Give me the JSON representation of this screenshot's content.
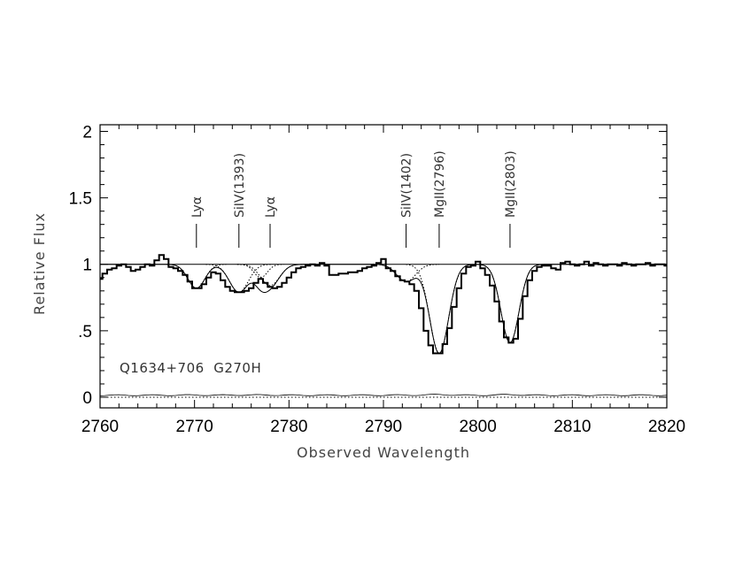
{
  "chart_data": {
    "type": "line",
    "xlabel": "Observed Wavelength",
    "ylabel": "Relative Flux",
    "xlim": [
      2760,
      2820
    ],
    "ylim": [
      -0.08,
      2.05
    ],
    "x_ticks": [
      2760,
      2770,
      2780,
      2790,
      2800,
      2810,
      2820
    ],
    "x_tick_labels": [
      "2760",
      "2770",
      "2780",
      "2790",
      "2800",
      "2810",
      "2820"
    ],
    "y_ticks": [
      0,
      0.5,
      1,
      1.5,
      2
    ],
    "y_tick_labels": [
      "0",
      ".5",
      "1",
      "1.5",
      "2"
    ],
    "annotation": "Q1634+706  G270H",
    "line_ids": [
      {
        "label": "Lyα",
        "x": 2770.2
      },
      {
        "label": "SiIV(1393)",
        "x": 2774.7
      },
      {
        "label": "Lyα",
        "x": 2778.0
      },
      {
        "label": "SiIV(1402)",
        "x": 2792.4
      },
      {
        "label": "MgII(2796)",
        "x": 2795.9
      },
      {
        "label": "MgII(2803)",
        "x": 2803.4
      }
    ],
    "continuum": 1.0,
    "zero_level": 0.0,
    "components": [
      {
        "center": 2770.2,
        "depth": 0.18,
        "sigma": 0.9
      },
      {
        "center": 2774.7,
        "depth": 0.21,
        "sigma": 1.0
      },
      {
        "center": 2777.0,
        "depth": 0.1,
        "sigma": 0.7
      },
      {
        "center": 2778.0,
        "depth": 0.16,
        "sigma": 1.0
      },
      {
        "center": 2792.4,
        "depth": 0.13,
        "sigma": 1.0
      },
      {
        "center": 2795.9,
        "depth": 0.67,
        "sigma": 1.0
      },
      {
        "center": 2803.4,
        "depth": 0.59,
        "sigma": 0.95
      }
    ],
    "series": [
      {
        "name": "data",
        "style": "histogram",
        "x": [
          2760.0,
          2760.5,
          2761.0,
          2761.5,
          2762.0,
          2762.5,
          2763.0,
          2763.5,
          2764.0,
          2764.5,
          2765.0,
          2765.5,
          2766.0,
          2766.5,
          2767.0,
          2767.5,
          2768.0,
          2768.5,
          2769.0,
          2769.5,
          2770.0,
          2770.5,
          2771.0,
          2771.5,
          2772.0,
          2772.5,
          2773.0,
          2773.5,
          2774.0,
          2774.5,
          2775.0,
          2775.5,
          2776.0,
          2776.5,
          2777.0,
          2777.5,
          2778.0,
          2778.5,
          2779.0,
          2779.5,
          2780.0,
          2780.5,
          2781.0,
          2781.5,
          2782.0,
          2782.5,
          2783.0,
          2783.5,
          2784.0,
          2784.5,
          2785.0,
          2785.5,
          2786.0,
          2786.5,
          2787.0,
          2787.5,
          2788.0,
          2788.5,
          2789.0,
          2789.5,
          2790.0,
          2790.5,
          2791.0,
          2791.5,
          2792.0,
          2792.5,
          2793.0,
          2793.5,
          2794.0,
          2794.5,
          2795.0,
          2795.5,
          2796.0,
          2796.5,
          2797.0,
          2797.5,
          2798.0,
          2798.5,
          2799.0,
          2799.5,
          2800.0,
          2800.5,
          2801.0,
          2801.5,
          2802.0,
          2802.5,
          2803.0,
          2803.5,
          2804.0,
          2804.5,
          2805.0,
          2805.5,
          2806.0,
          2806.5,
          2807.0,
          2807.5,
          2808.0,
          2808.5,
          2809.0,
          2809.5,
          2810.0,
          2810.5,
          2811.0,
          2811.5,
          2812.0,
          2812.5,
          2813.0,
          2813.5,
          2814.0,
          2814.5,
          2815.0,
          2815.5,
          2816.0,
          2816.5,
          2817.0,
          2817.5,
          2818.0,
          2818.5,
          2819.0,
          2819.5,
          2820.0
        ],
        "y": [
          0.89,
          0.93,
          0.96,
          0.97,
          0.99,
          1.0,
          0.98,
          0.95,
          0.96,
          0.98,
          1.0,
          0.99,
          1.03,
          1.07,
          1.04,
          0.98,
          0.97,
          0.95,
          0.92,
          0.87,
          0.82,
          0.82,
          0.85,
          0.9,
          0.94,
          0.93,
          0.88,
          0.83,
          0.8,
          0.79,
          0.79,
          0.8,
          0.82,
          0.86,
          0.89,
          0.86,
          0.83,
          0.82,
          0.83,
          0.86,
          0.9,
          0.94,
          0.97,
          0.98,
          0.99,
          1.0,
          0.99,
          1.01,
          0.99,
          0.92,
          0.92,
          0.93,
          0.93,
          0.94,
          0.94,
          0.95,
          0.97,
          0.98,
          0.99,
          1.01,
          1.04,
          0.97,
          0.95,
          0.91,
          0.88,
          0.87,
          0.85,
          0.8,
          0.67,
          0.5,
          0.39,
          0.33,
          0.33,
          0.4,
          0.52,
          0.68,
          0.82,
          0.93,
          0.98,
          0.99,
          1.02,
          0.97,
          0.92,
          0.84,
          0.72,
          0.57,
          0.45,
          0.41,
          0.44,
          0.59,
          0.76,
          0.88,
          0.95,
          0.98,
          0.99,
          0.99,
          0.97,
          0.96,
          1.01,
          1.02,
          1.0,
          0.99,
          1.0,
          1.02,
          0.99,
          1.01,
          1.0,
          0.99,
          1.0,
          1.0,
          0.99,
          1.01,
          1.0,
          0.99,
          1.0,
          1.0,
          1.01,
          0.99,
          1.0,
          1.0,
          0.99
        ]
      }
    ]
  }
}
